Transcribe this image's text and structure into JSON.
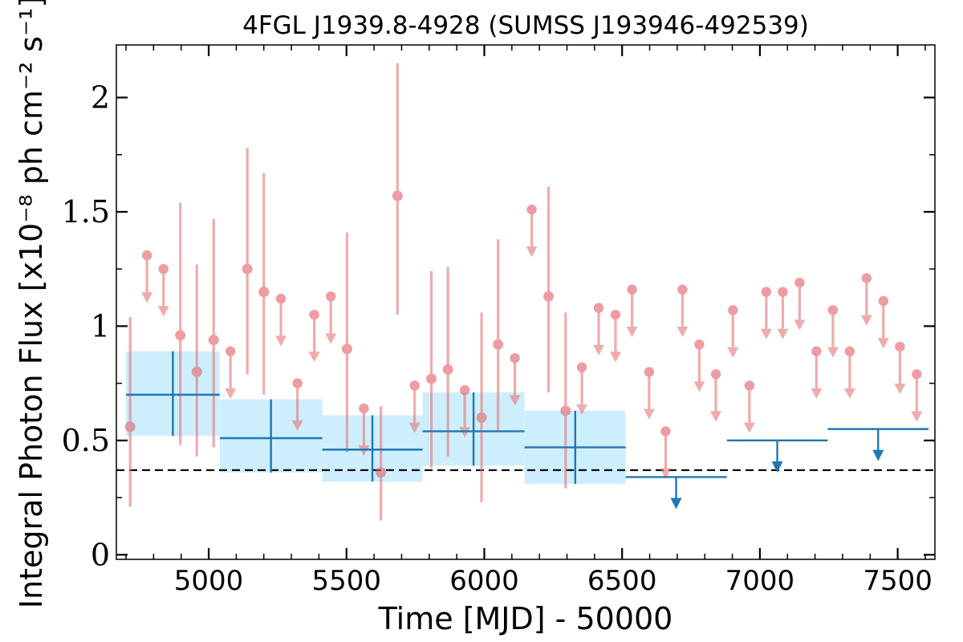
{
  "chart_data": {
    "type": "scatter",
    "title": "4FGL J1939.8-4928 (SUMSS J193946-492539)",
    "xlabel": "Time [MJD] - 50000",
    "ylabel": "Integral Photon Flux [x10⁻⁸ ph cm⁻² s⁻¹]",
    "xlim": [
      4665,
      7635
    ],
    "ylim": [
      -0.02,
      2.23
    ],
    "xticks": [
      5000,
      5500,
      6000,
      6500,
      7000,
      7500
    ],
    "xtick_labels": [
      "5000",
      "5500",
      "6000",
      "6500",
      "7000",
      "7500"
    ],
    "yticks": [
      0,
      0.5,
      1,
      1.5,
      2
    ],
    "ytick_labels": [
      "0",
      "0.5",
      "1",
      "1.5",
      "2"
    ],
    "grid": false,
    "reference_line": {
      "y": 0.37,
      "style": "dashed",
      "color": "#000000"
    },
    "colors": {
      "fine": "#e8787c",
      "fine_marker": "#e4616a",
      "coarse": "#1f77b4",
      "band": "#cdeefd"
    },
    "series": [
      {
        "type": "points_with_errors",
        "color": "#e8787c",
        "points": [
          {
            "x": 4715,
            "y": 0.56,
            "lo": 0.21,
            "hi": 1.04
          },
          {
            "x": 4897,
            "y": 0.96,
            "lo": 0.48,
            "hi": 1.54
          },
          {
            "x": 4957,
            "y": 0.8,
            "lo": 0.43,
            "hi": 1.27
          },
          {
            "x": 5018,
            "y": 0.94,
            "lo": 0.47,
            "hi": 1.47
          },
          {
            "x": 5140,
            "y": 1.25,
            "lo": 0.79,
            "hi": 1.78
          },
          {
            "x": 5200,
            "y": 1.15,
            "lo": 0.7,
            "hi": 1.67
          },
          {
            "x": 5502,
            "y": 0.9,
            "lo": 0.45,
            "hi": 1.41
          },
          {
            "x": 5625,
            "y": 0.36,
            "lo": 0.15,
            "hi": 0.65
          },
          {
            "x": 5685,
            "y": 1.57,
            "lo": 1.05,
            "hi": 2.15
          },
          {
            "x": 5808,
            "y": 0.77,
            "lo": 0.38,
            "hi": 1.24
          },
          {
            "x": 5868,
            "y": 0.81,
            "lo": 0.43,
            "hi": 1.26
          },
          {
            "x": 5990,
            "y": 0.6,
            "lo": 0.23,
            "hi": 1.06
          },
          {
            "x": 6050,
            "y": 0.92,
            "lo": 0.54,
            "hi": 1.38
          },
          {
            "x": 6233,
            "y": 1.13,
            "lo": 0.71,
            "hi": 1.61
          },
          {
            "x": 6295,
            "y": 0.63,
            "lo": 0.29,
            "hi": 1.06
          }
        ]
      },
      {
        "type": "upper_limits",
        "color": "#e8787c",
        "points": [
          {
            "x": 4776,
            "y": 1.31
          },
          {
            "x": 4836,
            "y": 1.25
          },
          {
            "x": 5079,
            "y": 0.89
          },
          {
            "x": 5262,
            "y": 1.12
          },
          {
            "x": 5322,
            "y": 0.75
          },
          {
            "x": 5383,
            "y": 1.05
          },
          {
            "x": 5443,
            "y": 1.13
          },
          {
            "x": 5563,
            "y": 0.64
          },
          {
            "x": 5747,
            "y": 0.74
          },
          {
            "x": 5929,
            "y": 0.72
          },
          {
            "x": 6111,
            "y": 0.86
          },
          {
            "x": 6172,
            "y": 1.51
          },
          {
            "x": 6354,
            "y": 0.82
          },
          {
            "x": 6415,
            "y": 1.08
          },
          {
            "x": 6476,
            "y": 1.05
          },
          {
            "x": 6536,
            "y": 1.16
          },
          {
            "x": 6598,
            "y": 0.8
          },
          {
            "x": 6658,
            "y": 0.54
          },
          {
            "x": 6719,
            "y": 1.16
          },
          {
            "x": 6780,
            "y": 0.92
          },
          {
            "x": 6840,
            "y": 0.79
          },
          {
            "x": 6902,
            "y": 1.07
          },
          {
            "x": 6962,
            "y": 0.74
          },
          {
            "x": 7023,
            "y": 1.15
          },
          {
            "x": 7083,
            "y": 1.15
          },
          {
            "x": 7144,
            "y": 1.19
          },
          {
            "x": 7205,
            "y": 0.89
          },
          {
            "x": 7265,
            "y": 1.07
          },
          {
            "x": 7326,
            "y": 0.89
          },
          {
            "x": 7387,
            "y": 1.21
          },
          {
            "x": 7448,
            "y": 1.11
          },
          {
            "x": 7508,
            "y": 0.91
          },
          {
            "x": 7569,
            "y": 0.79
          }
        ]
      },
      {
        "type": "binned_points",
        "color": "#1f77b4",
        "band_color": "#cdeefd",
        "points": [
          {
            "x0": 4700,
            "x1": 5040,
            "xc": 4870,
            "y": 0.7,
            "lo": 0.52,
            "hi": 0.89,
            "band_lo": 0.52,
            "band_hi": 0.89
          },
          {
            "x0": 5040,
            "x1": 5412,
            "xc": 5226,
            "y": 0.51,
            "lo": 0.36,
            "hi": 0.68,
            "band_lo": 0.36,
            "band_hi": 0.68
          },
          {
            "x0": 5412,
            "x1": 5776,
            "xc": 5594,
            "y": 0.46,
            "lo": 0.32,
            "hi": 0.61,
            "band_lo": 0.32,
            "band_hi": 0.61
          },
          {
            "x0": 5776,
            "x1": 6146,
            "xc": 5961,
            "y": 0.54,
            "lo": 0.39,
            "hi": 0.71,
            "band_lo": 0.39,
            "band_hi": 0.71
          },
          {
            "x0": 6146,
            "x1": 6513,
            "xc": 6330,
            "y": 0.47,
            "lo": 0.31,
            "hi": 0.63,
            "band_lo": 0.31,
            "band_hi": 0.63
          }
        ]
      },
      {
        "type": "binned_upper_limits",
        "color": "#1f77b4",
        "points": [
          {
            "x0": 6513,
            "x1": 6880,
            "xc": 6696,
            "y": 0.34
          },
          {
            "x0": 6880,
            "x1": 7246,
            "xc": 7063,
            "y": 0.5
          },
          {
            "x0": 7246,
            "x1": 7612,
            "xc": 7429,
            "y": 0.55
          }
        ]
      }
    ]
  }
}
